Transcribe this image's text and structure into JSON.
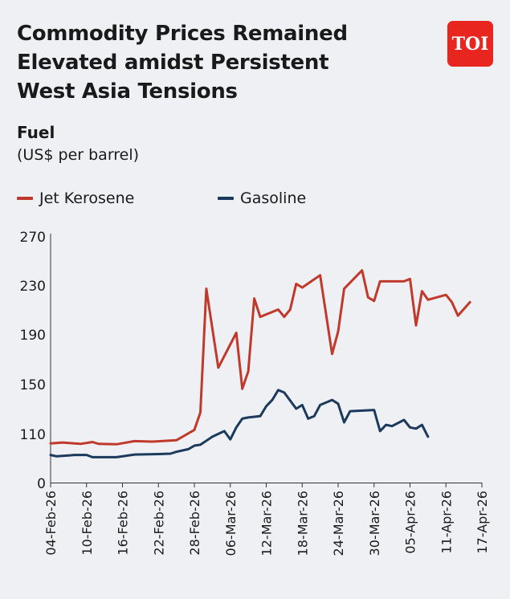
{
  "header": {
    "title_lines": [
      "Commodity Prices Remained",
      "Elevated amidst Persistent",
      "West Asia Tensions"
    ],
    "logo_text": "TOI"
  },
  "chart_data": {
    "type": "line",
    "title": "Fuel",
    "ylabel": "(US$ per barrel)",
    "ylim": [
      0,
      270
    ],
    "yticks": [
      0,
      110,
      150,
      190,
      230,
      270
    ],
    "x": [
      "04-Feb-26",
      "05-Feb-26",
      "06-Feb-26",
      "07-Feb-26",
      "08-Feb-26",
      "09-Feb-26",
      "10-Feb-26",
      "11-Feb-26",
      "12-Feb-26",
      "13-Feb-26",
      "14-Feb-26",
      "15-Feb-26",
      "16-Feb-26",
      "17-Feb-26",
      "18-Feb-26",
      "19-Feb-26",
      "20-Feb-26",
      "21-Feb-26",
      "22-Feb-26",
      "23-Feb-26",
      "24-Feb-26",
      "25-Feb-26",
      "26-Feb-26",
      "27-Feb-26",
      "28-Feb-26",
      "01-Mar-26",
      "02-Mar-26",
      "03-Mar-26",
      "04-Mar-26",
      "05-Mar-26",
      "06-Mar-26",
      "07-Mar-26",
      "08-Mar-26",
      "09-Mar-26",
      "10-Mar-26",
      "11-Mar-26",
      "12-Mar-26",
      "13-Mar-26",
      "14-Mar-26",
      "15-Mar-26",
      "16-Mar-26",
      "17-Mar-26",
      "18-Mar-26",
      "19-Mar-26",
      "20-Mar-26",
      "21-Mar-26",
      "22-Mar-26",
      "23-Mar-26",
      "24-Mar-26",
      "25-Mar-26",
      "26-Mar-26",
      "27-Mar-26",
      "28-Mar-26",
      "29-Mar-26",
      "30-Mar-26",
      "31-Mar-26",
      "01-Apr-26",
      "02-Apr-26",
      "03-Apr-26",
      "04-Apr-26",
      "05-Apr-26",
      "06-Apr-26",
      "07-Apr-26",
      "08-Apr-26",
      "09-Apr-26",
      "10-Apr-26",
      "11-Apr-26",
      "12-Apr-26",
      "13-Apr-26",
      "14-Apr-26",
      "15-Apr-26",
      "16-Apr-26",
      "17-Apr-26"
    ],
    "xtick_labels": [
      "04-Feb-26",
      "10-Feb-26",
      "16-Feb-26",
      "22-Feb-26",
      "28-Feb-26",
      "06-Mar-26",
      "12-Mar-26",
      "18-Mar-26",
      "24-Mar-26",
      "30-Mar-26",
      "05-Apr-26",
      "11-Apr-26",
      "17-Apr-26"
    ],
    "series": [
      {
        "name": "Jet Kerosene",
        "color": "#c0392b",
        "points": [
          [
            "04-Feb-26",
            88
          ],
          [
            "06-Feb-26",
            90
          ],
          [
            "09-Feb-26",
            87
          ],
          [
            "11-Feb-26",
            91
          ],
          [
            "12-Feb-26",
            87
          ],
          [
            "15-Feb-26",
            86
          ],
          [
            "18-Feb-26",
            93
          ],
          [
            "21-Feb-26",
            92
          ],
          [
            "25-Feb-26",
            95
          ],
          [
            "28-Feb-26",
            113
          ],
          [
            "01-Mar-26",
            127
          ],
          [
            "02-Mar-26",
            227
          ],
          [
            "04-Mar-26",
            163
          ],
          [
            "07-Mar-26",
            191
          ],
          [
            "08-Mar-26",
            146
          ],
          [
            "09-Mar-26",
            160
          ],
          [
            "10-Mar-26",
            219
          ],
          [
            "11-Mar-26",
            204
          ],
          [
            "14-Mar-26",
            210
          ],
          [
            "15-Mar-26",
            204
          ],
          [
            "16-Mar-26",
            210
          ],
          [
            "17-Mar-26",
            231
          ],
          [
            "18-Mar-26",
            228
          ],
          [
            "21-Mar-26",
            238
          ],
          [
            "23-Mar-26",
            174
          ],
          [
            "24-Mar-26",
            192
          ],
          [
            "25-Mar-26",
            227
          ],
          [
            "28-Mar-26",
            242
          ],
          [
            "29-Mar-26",
            220
          ],
          [
            "30-Mar-26",
            217
          ],
          [
            "31-Mar-26",
            233
          ],
          [
            "04-Apr-26",
            233
          ],
          [
            "05-Apr-26",
            235
          ],
          [
            "06-Apr-26",
            197
          ],
          [
            "07-Apr-26",
            225
          ],
          [
            "08-Apr-26",
            218
          ],
          [
            "11-Apr-26",
            222
          ],
          [
            "12-Apr-26",
            216
          ],
          [
            "13-Apr-26",
            205
          ],
          [
            "15-Apr-26",
            216
          ]
        ]
      },
      {
        "name": "Gasoline",
        "color": "#1b3a5c",
        "points": [
          [
            "04-Feb-26",
            62
          ],
          [
            "05-Feb-26",
            59
          ],
          [
            "07-Feb-26",
            61
          ],
          [
            "08-Feb-26",
            62
          ],
          [
            "10-Feb-26",
            62
          ],
          [
            "11-Feb-26",
            57
          ],
          [
            "12-Feb-26",
            57
          ],
          [
            "15-Feb-26",
            57
          ],
          [
            "18-Feb-26",
            63
          ],
          [
            "22-Feb-26",
            64
          ],
          [
            "24-Feb-26",
            65
          ],
          [
            "25-Feb-26",
            69
          ],
          [
            "27-Feb-26",
            75
          ],
          [
            "28-Feb-26",
            83
          ],
          [
            "01-Mar-26",
            85
          ],
          [
            "03-Mar-26",
            103
          ],
          [
            "05-Mar-26",
            112
          ],
          [
            "06-Mar-26",
            97
          ],
          [
            "07-Mar-26",
            115
          ],
          [
            "08-Mar-26",
            122
          ],
          [
            "09-Mar-26",
            123
          ],
          [
            "11-Mar-26",
            124
          ],
          [
            "12-Mar-26",
            132
          ],
          [
            "13-Mar-26",
            137
          ],
          [
            "14-Mar-26",
            145
          ],
          [
            "15-Mar-26",
            143
          ],
          [
            "17-Mar-26",
            130
          ],
          [
            "18-Mar-26",
            133
          ],
          [
            "19-Mar-26",
            122
          ],
          [
            "20-Mar-26",
            124
          ],
          [
            "21-Mar-26",
            133
          ],
          [
            "23-Mar-26",
            137
          ],
          [
            "24-Mar-26",
            134
          ],
          [
            "25-Mar-26",
            119
          ],
          [
            "26-Mar-26",
            128
          ],
          [
            "30-Mar-26",
            129
          ],
          [
            "31-Mar-26",
            112
          ],
          [
            "01-Apr-26",
            117
          ],
          [
            "02-Apr-26",
            116
          ],
          [
            "04-Apr-26",
            121
          ],
          [
            "05-Apr-26",
            115
          ],
          [
            "06-Apr-26",
            114
          ],
          [
            "07-Apr-26",
            117
          ],
          [
            "08-Apr-26",
            103
          ]
        ]
      }
    ]
  }
}
